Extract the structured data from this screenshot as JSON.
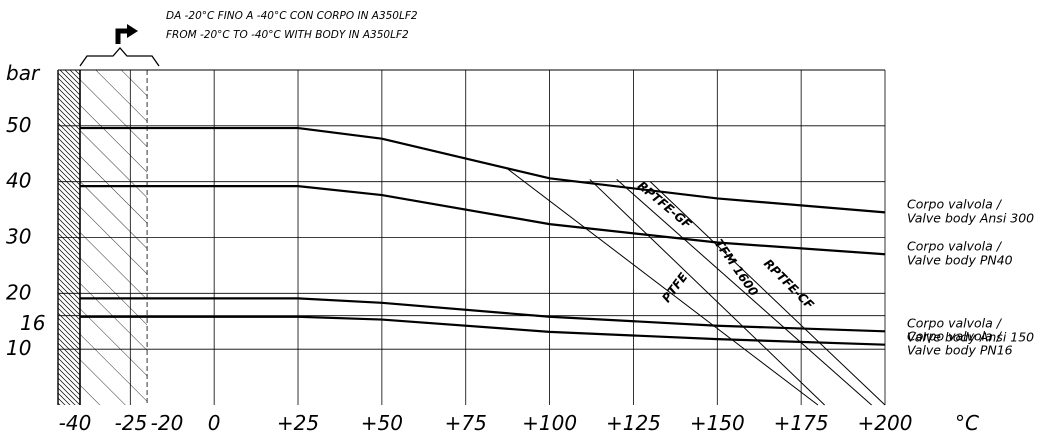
{
  "note": {
    "line1": "DA -20°C FINO A -40°C CON CORPO IN A350LF2",
    "line2": "FROM -20°C TO -40°C WITH BODY IN A350LF2"
  },
  "chart_data": {
    "type": "line",
    "title": "",
    "xlabel": "°C",
    "ylabel": "bar",
    "xlim": [
      -40,
      200
    ],
    "ylim": [
      0,
      60
    ],
    "x_ticks": [
      {
        "value": -40,
        "label": "-40"
      },
      {
        "value": -25,
        "label": "-25"
      },
      {
        "value": -20,
        "label": "-20"
      },
      {
        "value": 0,
        "label": "0"
      },
      {
        "value": 25,
        "label": "+25"
      },
      {
        "value": 50,
        "label": "+50"
      },
      {
        "value": 75,
        "label": "+75"
      },
      {
        "value": 100,
        "label": "+100"
      },
      {
        "value": 125,
        "label": "+125"
      },
      {
        "value": 150,
        "label": "+150"
      },
      {
        "value": 175,
        "label": "+175"
      },
      {
        "value": 200,
        "label": "+200"
      }
    ],
    "y_ticks": [
      {
        "value": 10,
        "label": "10"
      },
      {
        "value": 16,
        "label": "16"
      },
      {
        "value": 20,
        "label": "20"
      },
      {
        "value": 30,
        "label": "30"
      },
      {
        "value": 40,
        "label": "40"
      },
      {
        "value": 50,
        "label": "50"
      }
    ],
    "grid": true,
    "hatched_region": {
      "from": -40,
      "to": -20
    },
    "body_series": [
      {
        "label_line1": "Corpo valvola /",
        "label_line2": "Valve body Ansi 300",
        "points": [
          [
            -40,
            49.6
          ],
          [
            25,
            49.6
          ],
          [
            50,
            47.7
          ],
          [
            100,
            40.6
          ],
          [
            150,
            37.0
          ],
          [
            200,
            34.5
          ]
        ]
      },
      {
        "label_line1": "Corpo valvola /",
        "label_line2": "Valve body PN40",
        "points": [
          [
            -40,
            39.2
          ],
          [
            25,
            39.2
          ],
          [
            50,
            37.6
          ],
          [
            100,
            32.4
          ],
          [
            150,
            29.1
          ],
          [
            200,
            27.0
          ]
        ]
      },
      {
        "label_line1": "Corpo valvola /",
        "label_line2": "Valve body Ansi 150",
        "points": [
          [
            -40,
            19.1
          ],
          [
            25,
            19.1
          ],
          [
            50,
            18.3
          ],
          [
            100,
            15.8
          ],
          [
            150,
            14.2
          ],
          [
            200,
            13.2
          ]
        ]
      },
      {
        "label_line1": "Corpo valvola /",
        "label_line2": "Valve body PN16",
        "points": [
          [
            -40,
            15.8
          ],
          [
            25,
            15.8
          ],
          [
            50,
            15.3
          ],
          [
            100,
            13.1
          ],
          [
            150,
            11.8
          ],
          [
            200,
            10.8
          ]
        ]
      }
    ],
    "seat_series": [
      {
        "name": "PTFE",
        "points": [
          [
            87,
            42.5
          ],
          [
            180,
            0
          ]
        ]
      },
      {
        "name": "RPTFE-GF",
        "points": [
          [
            112,
            40.4
          ],
          [
            182,
            0
          ]
        ]
      },
      {
        "name": "TFM 1600",
        "points": [
          [
            120,
            40.4
          ],
          [
            196,
            0
          ]
        ]
      },
      {
        "name": "RPTFE-CF",
        "points": [
          [
            130,
            40.0
          ],
          [
            200,
            0
          ]
        ]
      }
    ]
  }
}
